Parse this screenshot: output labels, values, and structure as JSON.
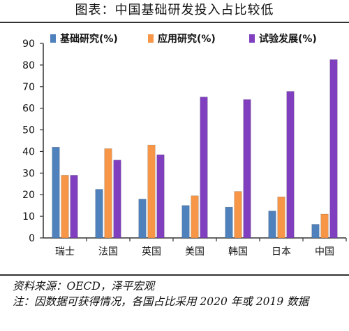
{
  "title": "图表：中国基础研发投入占比较低",
  "source": "资料来源：OECD，泽平宏观",
  "footnote": "注：因数据可获得情况，各国占比采用 2020 年或 2019 数据",
  "colors": {
    "basic": "#4f81bd",
    "applied": "#f79646",
    "experimental": "#7f3fbf"
  },
  "chart_data": {
    "type": "bar",
    "categories": [
      "瑞士",
      "法国",
      "英国",
      "美国",
      "韩国",
      "日本",
      "中国"
    ],
    "series": [
      {
        "name": "基础研究(%)",
        "values": [
          42,
          22.5,
          18,
          15,
          14.2,
          12.5,
          6.3
        ]
      },
      {
        "name": "应用研究(%)",
        "values": [
          29,
          41.3,
          43,
          19.5,
          21.5,
          19,
          11
        ]
      },
      {
        "name": "试验发展(%)",
        "values": [
          29,
          36,
          38.5,
          65.2,
          64,
          67.8,
          82.5
        ]
      }
    ],
    "ylim": [
      0,
      90
    ],
    "yticks": [
      0,
      10,
      20,
      30,
      40,
      50,
      60,
      70,
      80,
      90
    ],
    "legend_position": "top",
    "grid": false
  }
}
